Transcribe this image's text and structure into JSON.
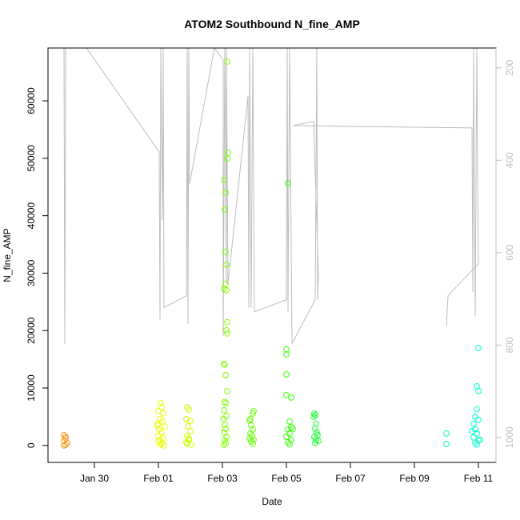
{
  "chart_data": {
    "type": "scatter",
    "title": "ATOM2 Southbound N_fine_AMP",
    "xlabel": "Date",
    "ylabel": "N_fine_AMP",
    "marker": "circle-open",
    "x": [
      29.05,
      29.1,
      29.1,
      29.05,
      29.15,
      29.1,
      29.05,
      32.075,
      32.1,
      32.0,
      32.15,
      32.05,
      32.125,
      31.975,
      32.025,
      32.1,
      32.0,
      32.15,
      32.05,
      32.0,
      32.1,
      32.075,
      32.175,
      31.975,
      32.2,
      32.9,
      32.95,
      32.875,
      33.0,
      32.925,
      33.0,
      32.9,
      32.95,
      32.875,
      33.025,
      32.95,
      32.9,
      34.15,
      34.175,
      34.15,
      34.05,
      34.1,
      34.075,
      34.1,
      34.125,
      34.1,
      34.05,
      34.125,
      34.15,
      34.125,
      34.15,
      34.05,
      34.075,
      34.1,
      34.15,
      34.075,
      34.1,
      34.05,
      34.125,
      34.025,
      34.075,
      34.1,
      34.05,
      34.125,
      34.075,
      34.1,
      34.05,
      34.975,
      34.95,
      34.875,
      34.85,
      34.9,
      34.95,
      34.875,
      34.925,
      34.85,
      34.9,
      34.95,
      34.975,
      36.05,
      36.0,
      36.0,
      36.0,
      36.0,
      36.15,
      36.1,
      36.15,
      36.05,
      36.1,
      36.0,
      36.15,
      36.05,
      36.1,
      36.2,
      36.875,
      36.9,
      36.85,
      36.925,
      36.9,
      36.95,
      36.875,
      36.925,
      36.9,
      36.975,
      37.0,
      41.0,
      41.0,
      42.0,
      41.95,
      42.0,
      41.95,
      41.9,
      42.0,
      41.85,
      41.9,
      41.95,
      41.85,
      42.0,
      41.9,
      41.95,
      41.8,
      42.05
    ],
    "values": [
      1810,
      1531,
      1253,
      835,
      418,
      139,
      0,
      7378,
      6682,
      5986,
      5568,
      4594,
      4176,
      3480,
      2784,
      2227,
      1670,
      1253,
      974,
      696,
      418,
      139,
      0,
      3800,
      3300,
      6682,
      6264,
      4594,
      4315,
      3341,
      2506,
      1670,
      974,
      557,
      139,
      1200,
      300,
      66830,
      50962,
      49988,
      46230,
      44002,
      41081,
      33706,
      31477,
      28136,
      27301,
      27023,
      21453,
      20060,
      19503,
      14198,
      14059,
      12250,
      9466,
      7600,
      7378,
      6125,
      5150,
      4600,
      3600,
      2900,
      2200,
      1500,
      900,
      400,
      100,
      5986,
      5568,
      4594,
      4315,
      3480,
      2784,
      2088,
      1670,
      1253,
      696,
      278,
      1000,
      45654,
      16704,
      15869,
      12388,
      8770,
      8352,
      4176,
      3200,
      2784,
      2088,
      1531,
      974,
      556,
      200,
      2900,
      5568,
      5290,
      5000,
      3800,
      2923,
      2227,
      1531,
      974,
      418,
      1800,
      800,
      2088,
      278,
      16983,
      10300,
      9500,
      6300,
      5000,
      4500,
      3800,
      2800,
      2100,
      1400,
      900,
      500,
      150,
      2500,
      1000
    ],
    "colors": [
      "#F59A23",
      "#F59A23",
      "#F59A23",
      "#F59A23",
      "#F59A23",
      "#F59A23",
      "#F59A23",
      "#E6FF00",
      "#E6FF00",
      "#E6FF00",
      "#E6FF00",
      "#E6FF00",
      "#E6FF00",
      "#E6FF00",
      "#E6FF00",
      "#E6FF00",
      "#E6FF00",
      "#E6FF00",
      "#E6FF00",
      "#E6FF00",
      "#E6FF00",
      "#E6FF00",
      "#E6FF00",
      "#E6FF00",
      "#E6FF00",
      "#CCFF00",
      "#CCFF00",
      "#CCFF00",
      "#CCFF00",
      "#CCFF00",
      "#CCFF00",
      "#CCFF00",
      "#CCFF00",
      "#CCFF00",
      "#CCFF00",
      "#CCFF00",
      "#CCFF00",
      "#80FF00",
      "#80FF00",
      "#80FF00",
      "#80FF00",
      "#80FF00",
      "#80FF00",
      "#80FF00",
      "#80FF00",
      "#80FF00",
      "#80FF00",
      "#80FF00",
      "#80FF00",
      "#80FF00",
      "#80FF00",
      "#80FF00",
      "#80FF00",
      "#80FF00",
      "#80FF00",
      "#80FF00",
      "#80FF00",
      "#80FF00",
      "#80FF00",
      "#80FF00",
      "#80FF00",
      "#80FF00",
      "#80FF00",
      "#80FF00",
      "#80FF00",
      "#80FF00",
      "#80FF00",
      "#66FF00",
      "#66FF00",
      "#66FF00",
      "#66FF00",
      "#66FF00",
      "#66FF00",
      "#66FF00",
      "#66FF00",
      "#66FF00",
      "#66FF00",
      "#66FF00",
      "#66FF00",
      "#33FF00",
      "#33FF00",
      "#33FF00",
      "#33FF00",
      "#33FF00",
      "#33FF00",
      "#33FF00",
      "#33FF00",
      "#33FF00",
      "#33FF00",
      "#33FF00",
      "#33FF00",
      "#33FF00",
      "#33FF00",
      "#33FF00",
      "#19FF33",
      "#19FF33",
      "#19FF33",
      "#19FF33",
      "#19FF33",
      "#19FF33",
      "#19FF33",
      "#19FF33",
      "#19FF33",
      "#19FF33",
      "#19FF33",
      "#00FF99",
      "#00FF99",
      "#00FFCC",
      "#00FFCC",
      "#00FFCC",
      "#00FFCC",
      "#00FFCC",
      "#00FFCC",
      "#00FFCC",
      "#00FFCC",
      "#00FFCC",
      "#00FFCC",
      "#00FFCC",
      "#00FFCC",
      "#00FFCC",
      "#00FFCC",
      "#00FFCC"
    ],
    "xlim": [
      28.55,
      42.55
    ],
    "xticks": [
      {
        "value": 30,
        "label": "Jan 30"
      },
      {
        "value": 32,
        "label": "Feb 01"
      },
      {
        "value": 34,
        "label": "Feb 03"
      },
      {
        "value": 36,
        "label": "Feb 05"
      },
      {
        "value": 38,
        "label": "Feb 07"
      },
      {
        "value": 40,
        "label": "Feb 09"
      },
      {
        "value": 42,
        "label": "Feb 11"
      }
    ],
    "ylim": [
      -2950,
      69200
    ],
    "yticks": [
      0,
      10000,
      20000,
      30000,
      40000,
      50000,
      60000
    ],
    "y2lim": [
      1054,
      157
    ],
    "y2ticks": [
      200,
      400,
      600,
      800,
      1000
    ],
    "y2color": "#BEBEBE",
    "line": {
      "axis": "y2",
      "color": "#BEBEBE",
      "x": [
        29.05,
        29.075,
        29.1,
        29.75,
        32.025,
        32.05,
        32.075,
        32.125,
        32.15,
        32.175,
        32.875,
        32.9,
        32.925,
        32.95,
        32.975,
        33.75,
        34.025,
        34.025,
        34.075,
        34.125,
        34.125,
        34.175,
        34.8,
        34.825,
        34.85,
        34.9,
        34.95,
        35.0,
        36.0,
        36.025,
        36.05,
        36.1,
        36.175,
        36.9,
        36.95,
        36.975,
        37.0,
        36.85,
        36.2,
        41.8,
        41.825,
        41.85,
        41.9,
        41.95,
        42.0,
        41.05,
        41.0
      ],
      "values": [
        157,
        797,
        157,
        157,
        382,
        745,
        157,
        529,
        157,
        719,
        693,
        157,
        754,
        157,
        451,
        157,
        183,
        780,
        157,
        668,
        157,
        668,
        261,
        719,
        157,
        719,
        157,
        728,
        702,
        157,
        728,
        157,
        797,
        702,
        157,
        702,
        650,
        316,
        325,
        330,
        685,
        157,
        737,
        157,
        624,
        693,
        759
      ]
    }
  }
}
